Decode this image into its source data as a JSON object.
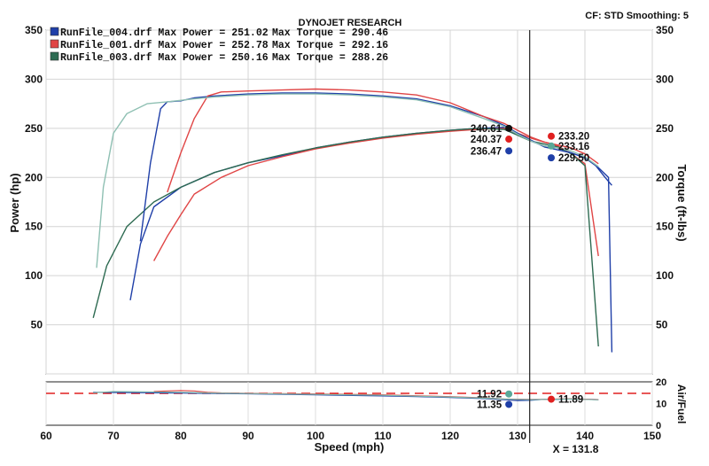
{
  "header": {
    "title": "DYNOJET RESEARCH",
    "settings": "CF: STD  Smoothing: 5"
  },
  "legend": [
    {
      "file": "RunFile_004.drf",
      "label": "RunFile_004.drf Max Power = 251.02",
      "torque_label": "Max Torque = 290.46",
      "color": "#1f3fa8"
    },
    {
      "file": "RunFile_001.drf",
      "label": "RunFile_001.drf Max Power = 252.78",
      "torque_label": "Max Torque = 292.16",
      "color": "#e04545"
    },
    {
      "file": "RunFile_003.drf",
      "label": "RunFile_003.drf Max Power = 250.16",
      "torque_label": "Max Torque = 288.26",
      "color": "#2e6b52"
    }
  ],
  "chart_data": [
    {
      "type": "line",
      "title": "DYNOJET RESEARCH",
      "xlabel": "Speed (mph)",
      "ylabel": "Power (hp)",
      "y2label": "Torque (ft-lbs)",
      "xlim": [
        60,
        150
      ],
      "ylim": [
        0,
        350
      ],
      "y2lim": [
        0,
        350
      ],
      "xticks": [
        60,
        70,
        80,
        90,
        100,
        110,
        120,
        130,
        140,
        150
      ],
      "yticks": [
        0,
        50,
        100,
        150,
        200,
        250,
        300,
        350
      ],
      "grid": true,
      "cursor_x": 131.8,
      "series": [
        {
          "name": "RunFile_004.drf Power",
          "color": "#1f3fa8",
          "x": [
            72.5,
            74,
            76,
            80,
            85,
            90,
            95,
            100,
            105,
            110,
            115,
            120,
            124,
            128,
            130,
            132,
            134,
            136,
            138,
            140,
            142,
            143.5,
            144
          ],
          "y": [
            75,
            132,
            170,
            190,
            205,
            215,
            222,
            230,
            236,
            241,
            245,
            248,
            250,
            251,
            244,
            237,
            232,
            230,
            225,
            220,
            210,
            200,
            22
          ]
        },
        {
          "name": "RunFile_001.drf Power",
          "color": "#e04545",
          "x": [
            76,
            78,
            80,
            82,
            86,
            90,
            95,
            100,
            105,
            110,
            115,
            120,
            124,
            128,
            130,
            132,
            134,
            136,
            138,
            140,
            142
          ],
          "y": [
            115,
            140,
            162,
            183,
            200,
            212,
            221,
            229,
            235,
            240,
            244,
            247,
            249,
            250,
            245,
            240,
            236,
            232,
            224,
            214,
            120
          ]
        },
        {
          "name": "RunFile_003.drf Power",
          "color": "#2e6b52",
          "x": [
            67,
            69,
            72,
            76,
            80,
            85,
            90,
            95,
            100,
            105,
            110,
            115,
            120,
            124,
            128,
            130,
            132,
            134,
            136,
            138,
            140,
            142
          ],
          "y": [
            57,
            110,
            150,
            175,
            190,
            205,
            215,
            223,
            230,
            236,
            241,
            245,
            248,
            250,
            249,
            243,
            237,
            234,
            231,
            224,
            212,
            28
          ]
        },
        {
          "name": "RunFile_004.drf Torque",
          "color": "#1f3fa8",
          "x": [
            74,
            75.5,
            77,
            78,
            80,
            82,
            85,
            90,
            95,
            100,
            105,
            110,
            115,
            120,
            125,
            128,
            130,
            132,
            134,
            136,
            138,
            140,
            141.5,
            143,
            144
          ],
          "y": [
            135,
            215,
            270,
            277,
            278,
            281,
            283,
            285,
            286,
            286,
            285,
            283,
            280,
            273,
            262,
            253,
            245,
            238,
            231,
            228,
            225,
            220,
            213,
            200,
            192
          ]
        },
        {
          "name": "RunFile_001.drf Torque",
          "color": "#e04545",
          "x": [
            78,
            80,
            82,
            84,
            86,
            90,
            95,
            100,
            105,
            110,
            115,
            120,
            125,
            128,
            130,
            132,
            134,
            136,
            138,
            140,
            142
          ],
          "y": [
            185,
            225,
            260,
            283,
            287,
            288,
            289,
            290,
            289,
            287,
            284,
            276,
            262,
            255,
            248,
            241,
            236,
            233,
            230,
            224,
            214
          ]
        },
        {
          "name": "RunFile_003.drf Torque",
          "color": "#8fc0b3",
          "x": [
            67.5,
            68.5,
            70,
            72,
            75,
            78,
            82,
            85,
            90,
            95,
            100,
            105,
            110,
            115,
            120,
            125,
            128,
            130,
            132,
            134,
            136,
            138,
            140,
            142
          ],
          "y": [
            108,
            190,
            245,
            265,
            275,
            277,
            280,
            282,
            284,
            285,
            285,
            284,
            282,
            279,
            272,
            260,
            252,
            244,
            237,
            232,
            230,
            227,
            221,
            211
          ]
        }
      ]
    },
    {
      "type": "line",
      "ylabel": "Air/Fuel",
      "xlim": [
        60,
        150
      ],
      "ylim": [
        0,
        20
      ],
      "yticks": [
        0,
        10,
        20
      ],
      "reference_line": 14.7,
      "series": [
        {
          "name": "RunFile_004.drf AFR",
          "color": "#1f3fa8",
          "x": [
            67,
            75,
            80,
            85,
            90,
            100,
            110,
            115,
            120,
            125,
            128,
            130,
            132,
            134,
            136,
            138,
            140,
            142
          ],
          "y": [
            15.2,
            15.0,
            14.8,
            14.6,
            14.5,
            14.0,
            13.5,
            13.2,
            12.8,
            12.3,
            11.8,
            11.4,
            11.5,
            12.0,
            11.9,
            12.2,
            12.0,
            11.8
          ]
        },
        {
          "name": "RunFile_001.drf AFR",
          "color": "#e04545",
          "x": [
            76,
            80,
            82,
            84,
            86,
            90,
            100,
            110,
            115,
            120,
            125,
            128,
            130,
            132,
            134,
            136,
            138,
            140,
            142
          ],
          "y": [
            15.6,
            16.0,
            15.8,
            15.2,
            14.9,
            14.7,
            14.4,
            14.0,
            13.6,
            13.2,
            12.6,
            12.1,
            12.0,
            11.9,
            11.9,
            12.1,
            12.2,
            12.0,
            11.8
          ]
        },
        {
          "name": "RunFile_003.drf AFR",
          "color": "#7fb8aa",
          "x": [
            67,
            70,
            75,
            80,
            85,
            90,
            100,
            110,
            120,
            125,
            128,
            130,
            132,
            134,
            136,
            138,
            140,
            142
          ],
          "y": [
            15.0,
            15.5,
            15.4,
            15.2,
            14.8,
            14.6,
            14.2,
            13.8,
            13.0,
            12.5,
            12.1,
            11.9,
            11.8,
            11.9,
            12.0,
            12.1,
            11.9,
            11.7
          ]
        }
      ]
    }
  ],
  "markers": [
    {
      "x": 128.7,
      "y": 250,
      "label": "240.61",
      "color": "#111111",
      "side": "left"
    },
    {
      "x": 128.7,
      "y": 239,
      "label": "240.37",
      "color": "#e02020",
      "side": "left"
    },
    {
      "x": 128.7,
      "y": 227,
      "label": "236.47",
      "color": "#1f3fa8",
      "side": "left"
    },
    {
      "x": 135.0,
      "y": 242,
      "label": "233.20",
      "color": "#e02020",
      "side": "right"
    },
    {
      "x": 135.0,
      "y": 232,
      "label": "233.16",
      "color": "#5aa898",
      "side": "right"
    },
    {
      "x": 135.0,
      "y": 220,
      "label": "229.50",
      "color": "#1f3fa8",
      "side": "right"
    }
  ],
  "afr_markers": [
    {
      "x": 128.7,
      "y": 14.4,
      "label": "11.92",
      "color": "#5aa898",
      "side": "left"
    },
    {
      "x": 128.7,
      "y": 9.6,
      "label": "11.35",
      "color": "#1f3fa8",
      "side": "left"
    },
    {
      "x": 135.0,
      "y": 12.0,
      "label": "11.89",
      "color": "#e02020",
      "side": "right"
    }
  ],
  "cursor_label": "X = 131.8"
}
